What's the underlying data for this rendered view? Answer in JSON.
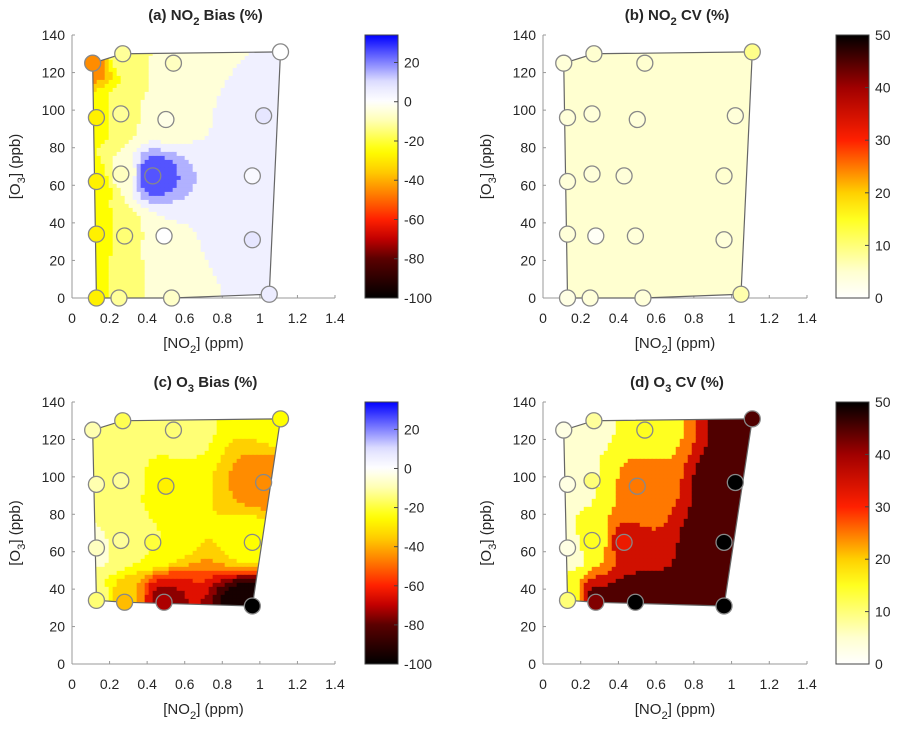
{
  "chart_data": [
    {
      "type": "heatmap",
      "subtype": "filled-contour-with-scatter",
      "title": {
        "prefix": "(a) NO",
        "sub": "2",
        "suffix": " Bias (%)"
      },
      "xlabel": {
        "prefix": "[NO",
        "sub": "2",
        "suffix": "] (ppm)"
      },
      "ylabel": {
        "prefix": "[O",
        "sub": "3",
        "suffix": "] (ppb)"
      },
      "xlim": [
        0,
        1.4
      ],
      "ylim": [
        0,
        140
      ],
      "xticks": [
        0,
        0.2,
        0.4,
        0.6,
        0.8,
        1,
        1.2,
        1.4
      ],
      "yticks": [
        0,
        20,
        40,
        60,
        80,
        100,
        120,
        140
      ],
      "colormap": "bias",
      "clim": [
        -100,
        34
      ],
      "cticks": [
        20,
        0,
        -20,
        -40,
        -60,
        -80,
        -100
      ],
      "points": [
        {
          "x": 0.11,
          "y": 125,
          "v": -45
        },
        {
          "x": 0.27,
          "y": 130,
          "v": -12
        },
        {
          "x": 1.11,
          "y": 131,
          "v": 0
        },
        {
          "x": 0.54,
          "y": 125,
          "v": -8
        },
        {
          "x": 0.13,
          "y": 96,
          "v": -28
        },
        {
          "x": 0.26,
          "y": 98,
          "v": -12
        },
        {
          "x": 0.5,
          "y": 95,
          "v": -3
        },
        {
          "x": 1.02,
          "y": 97,
          "v": 8
        },
        {
          "x": 0.13,
          "y": 62,
          "v": -28
        },
        {
          "x": 0.26,
          "y": 66,
          "v": -8
        },
        {
          "x": 0.43,
          "y": 65,
          "v": 25
        },
        {
          "x": 0.96,
          "y": 65,
          "v": 2
        },
        {
          "x": 0.13,
          "y": 34,
          "v": -28
        },
        {
          "x": 0.28,
          "y": 33,
          "v": -15
        },
        {
          "x": 0.49,
          "y": 33,
          "v": 0
        },
        {
          "x": 0.96,
          "y": 31,
          "v": 8
        },
        {
          "x": 0.13,
          "y": 0,
          "v": -28
        },
        {
          "x": 0.25,
          "y": 0,
          "v": -12
        },
        {
          "x": 0.53,
          "y": 0,
          "v": -7
        },
        {
          "x": 1.05,
          "y": 2,
          "v": 6
        }
      ]
    },
    {
      "type": "heatmap",
      "subtype": "filled-contour-with-scatter",
      "title": {
        "prefix": "(b) NO",
        "sub": "2",
        "suffix": " CV (%)"
      },
      "xlabel": {
        "prefix": "[NO",
        "sub": "2",
        "suffix": "] (ppm)"
      },
      "ylabel": {
        "prefix": "[O",
        "sub": "3",
        "suffix": "] (ppb)"
      },
      "xlim": [
        0,
        1.4
      ],
      "ylim": [
        0,
        140
      ],
      "xticks": [
        0,
        0.2,
        0.4,
        0.6,
        0.8,
        1,
        1.2,
        1.4
      ],
      "yticks": [
        0,
        20,
        40,
        60,
        80,
        100,
        120,
        140
      ],
      "colormap": "cv",
      "clim": [
        0,
        50
      ],
      "cticks": [
        50,
        40,
        30,
        20,
        10,
        0
      ],
      "points": [
        {
          "x": 0.11,
          "y": 125,
          "v": 4
        },
        {
          "x": 0.27,
          "y": 130,
          "v": 5
        },
        {
          "x": 1.11,
          "y": 131,
          "v": 9
        },
        {
          "x": 0.54,
          "y": 125,
          "v": 5
        },
        {
          "x": 0.13,
          "y": 96,
          "v": 4
        },
        {
          "x": 0.26,
          "y": 98,
          "v": 4
        },
        {
          "x": 0.5,
          "y": 95,
          "v": 4
        },
        {
          "x": 1.02,
          "y": 97,
          "v": 4
        },
        {
          "x": 0.13,
          "y": 62,
          "v": 4
        },
        {
          "x": 0.26,
          "y": 66,
          "v": 4
        },
        {
          "x": 0.43,
          "y": 65,
          "v": 4
        },
        {
          "x": 0.96,
          "y": 65,
          "v": 5
        },
        {
          "x": 0.13,
          "y": 34,
          "v": 4
        },
        {
          "x": 0.28,
          "y": 33,
          "v": 1
        },
        {
          "x": 0.49,
          "y": 33,
          "v": 4
        },
        {
          "x": 0.96,
          "y": 31,
          "v": 4
        },
        {
          "x": 0.13,
          "y": 0,
          "v": 3
        },
        {
          "x": 0.25,
          "y": 0,
          "v": 4
        },
        {
          "x": 0.53,
          "y": 0,
          "v": 4
        },
        {
          "x": 1.05,
          "y": 2,
          "v": 7
        }
      ]
    },
    {
      "type": "heatmap",
      "subtype": "filled-contour-with-scatter",
      "title": {
        "prefix": "(c) O",
        "sub": "3",
        "suffix": " Bias (%)"
      },
      "xlabel": {
        "prefix": "[NO",
        "sub": "2",
        "suffix": "] (ppm)"
      },
      "ylabel": {
        "prefix": "[O",
        "sub": "3",
        "suffix": "] (ppb)"
      },
      "xlim": [
        0,
        1.4
      ],
      "ylim": [
        0,
        140
      ],
      "xticks": [
        0,
        0.2,
        0.4,
        0.6,
        0.8,
        1,
        1.2,
        1.4
      ],
      "yticks": [
        0,
        20,
        40,
        60,
        80,
        100,
        120,
        140
      ],
      "colormap": "bias",
      "clim": [
        -100,
        34
      ],
      "cticks": [
        20,
        0,
        -20,
        -40,
        -60,
        -80,
        -100
      ],
      "points": [
        {
          "x": 0.11,
          "y": 125,
          "v": -10
        },
        {
          "x": 0.27,
          "y": 130,
          "v": -18
        },
        {
          "x": 1.11,
          "y": 131,
          "v": -25
        },
        {
          "x": 0.54,
          "y": 125,
          "v": -15
        },
        {
          "x": 0.13,
          "y": 96,
          "v": -10
        },
        {
          "x": 0.26,
          "y": 98,
          "v": -12
        },
        {
          "x": 0.5,
          "y": 95,
          "v": -28
        },
        {
          "x": 1.02,
          "y": 97,
          "v": -45
        },
        {
          "x": 0.13,
          "y": 62,
          "v": -8
        },
        {
          "x": 0.26,
          "y": 66,
          "v": -12
        },
        {
          "x": 0.43,
          "y": 65,
          "v": -20
        },
        {
          "x": 0.96,
          "y": 65,
          "v": -25
        },
        {
          "x": 0.13,
          "y": 34,
          "v": -15
        },
        {
          "x": 0.28,
          "y": 33,
          "v": -38
        },
        {
          "x": 0.49,
          "y": 33,
          "v": -72
        },
        {
          "x": 0.96,
          "y": 31,
          "v": -100
        }
      ]
    },
    {
      "type": "heatmap",
      "subtype": "filled-contour-with-scatter",
      "title": {
        "prefix": "(d) O",
        "sub": "3",
        "suffix": " CV (%)"
      },
      "xlabel": {
        "prefix": "[NO",
        "sub": "2",
        "suffix": "] (ppm)"
      },
      "ylabel": {
        "prefix": "[O",
        "sub": "3",
        "suffix": "] (ppb)"
      },
      "xlim": [
        0,
        1.4
      ],
      "ylim": [
        0,
        140
      ],
      "xticks": [
        0,
        0.2,
        0.4,
        0.6,
        0.8,
        1,
        1.2,
        1.4
      ],
      "yticks": [
        0,
        20,
        40,
        60,
        80,
        100,
        120,
        140
      ],
      "colormap": "cv",
      "clim": [
        0,
        50
      ],
      "cticks": [
        50,
        40,
        30,
        20,
        10,
        0
      ],
      "points": [
        {
          "x": 0.11,
          "y": 125,
          "v": 3
        },
        {
          "x": 0.27,
          "y": 130,
          "v": 8
        },
        {
          "x": 1.11,
          "y": 131,
          "v": 45
        },
        {
          "x": 0.54,
          "y": 125,
          "v": 15
        },
        {
          "x": 0.13,
          "y": 96,
          "v": 3
        },
        {
          "x": 0.26,
          "y": 98,
          "v": 10
        },
        {
          "x": 0.5,
          "y": 95,
          "v": 25
        },
        {
          "x": 1.02,
          "y": 97,
          "v": 50
        },
        {
          "x": 0.13,
          "y": 62,
          "v": 3
        },
        {
          "x": 0.26,
          "y": 66,
          "v": 15
        },
        {
          "x": 0.43,
          "y": 65,
          "v": 32
        },
        {
          "x": 0.96,
          "y": 65,
          "v": 50
        },
        {
          "x": 0.13,
          "y": 34,
          "v": 10
        },
        {
          "x": 0.28,
          "y": 33,
          "v": 42
        },
        {
          "x": 0.49,
          "y": 33,
          "v": 50
        },
        {
          "x": 0.96,
          "y": 31,
          "v": 50
        }
      ]
    }
  ],
  "colormaps": {
    "bias": [
      [
        -100,
        "#000000"
      ],
      [
        -80,
        "#5a0000"
      ],
      [
        -70,
        "#c00000"
      ],
      [
        -60,
        "#ff2000"
      ],
      [
        -45,
        "#ff8c00"
      ],
      [
        -35,
        "#ffd000"
      ],
      [
        -25,
        "#ffff00"
      ],
      [
        -10,
        "#ffffb0"
      ],
      [
        0,
        "#ffffff"
      ],
      [
        10,
        "#e0e0ff"
      ],
      [
        34,
        "#0000ff"
      ]
    ],
    "cv": [
      [
        0,
        "#ffffff"
      ],
      [
        5,
        "#ffffd0"
      ],
      [
        15,
        "#ffff20"
      ],
      [
        20,
        "#ffd000"
      ],
      [
        30,
        "#ff2000"
      ],
      [
        40,
        "#a00000"
      ],
      [
        50,
        "#000000"
      ]
    ]
  }
}
